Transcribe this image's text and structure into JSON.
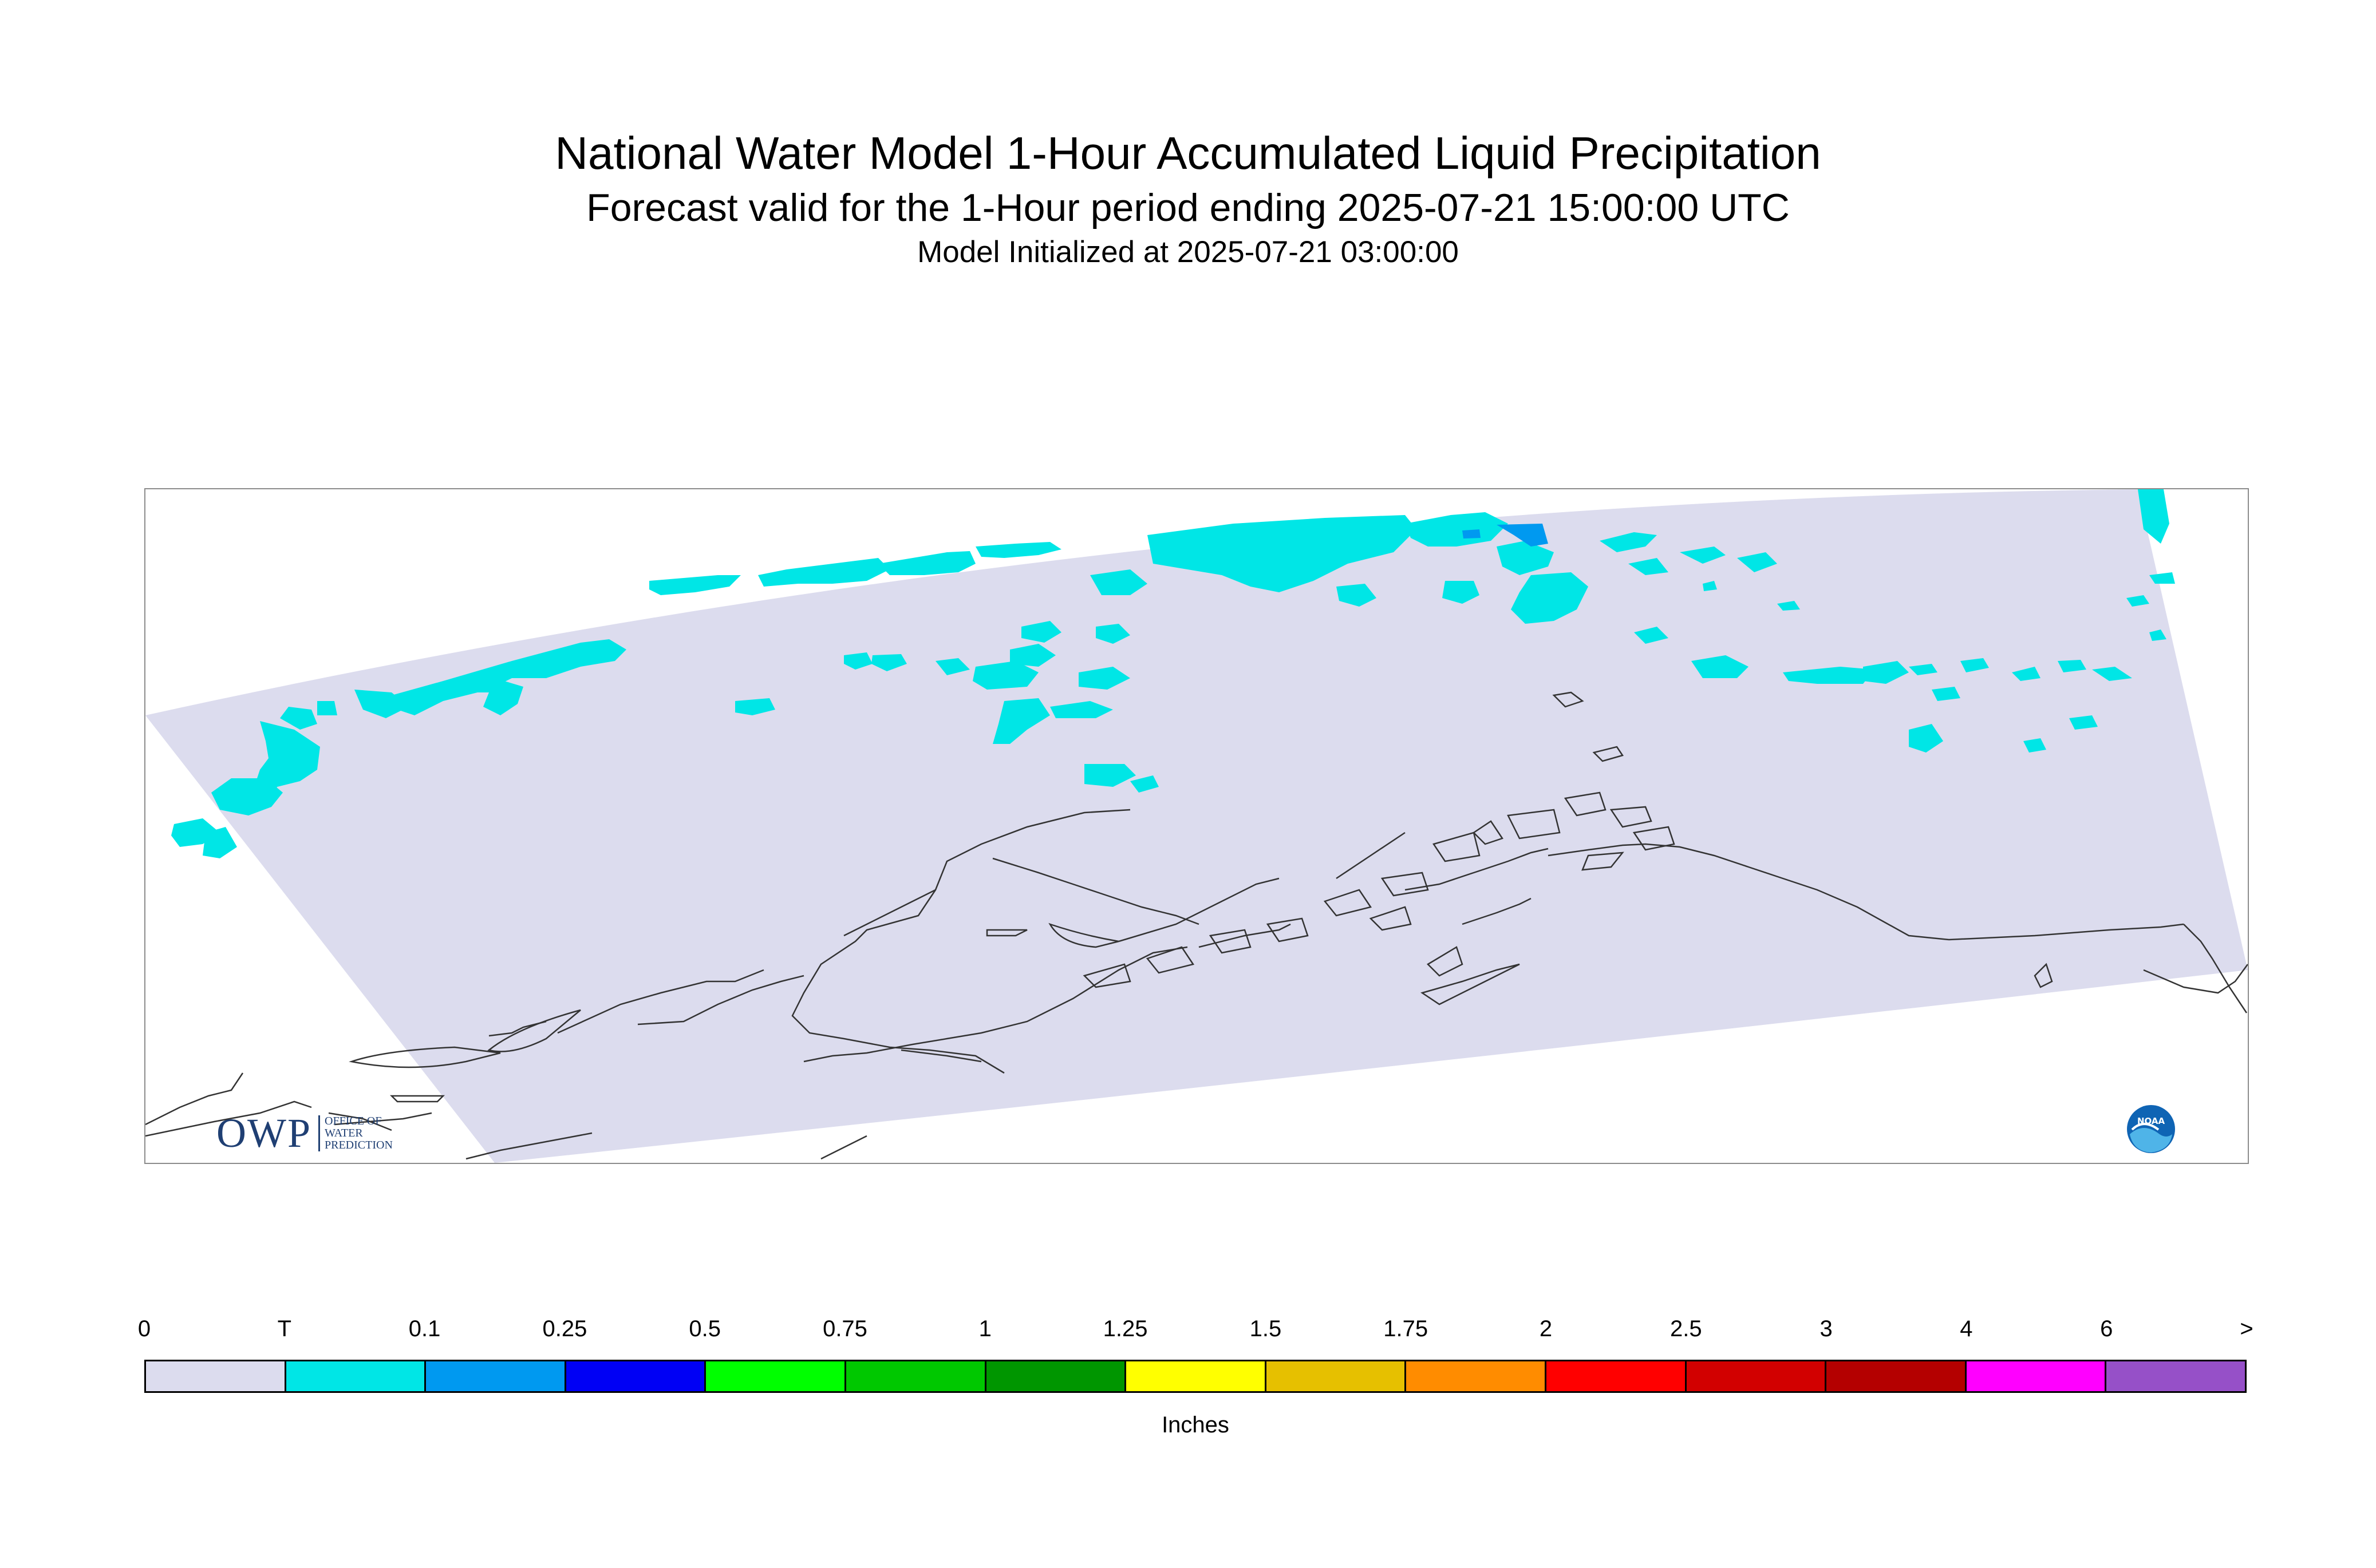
{
  "title": "National Water Model 1-Hour Accumulated Liquid Precipitation",
  "subtitle": "Forecast valid for the 1-Hour period ending 2025-07-21 15:00:00 UTC",
  "init_line": "Model Initialized at 2025-07-21 03:00:00",
  "logo_owp": {
    "letters": "OWP",
    "lines": [
      "OFFICE OF",
      "WATER",
      "PREDICTION"
    ]
  },
  "logo_noaa": {
    "text": "NOAA"
  },
  "legend": {
    "units": "Inches",
    "tick_labels": [
      "0",
      "T",
      "0.1",
      "0.25",
      "0.5",
      "0.75",
      "1",
      "1.25",
      "1.5",
      "1.75",
      "2",
      "2.5",
      "3",
      "4",
      "6",
      ">"
    ],
    "colors": [
      "#dcdcee",
      "#00e6e6",
      "#0099f0",
      "#0000f5",
      "#00ff00",
      "#00c800",
      "#009600",
      "#ffff00",
      "#e6c000",
      "#ff8c00",
      "#ff0000",
      "#d20000",
      "#b40000",
      "#ff00ff",
      "#9650c8"
    ]
  },
  "map": {
    "domain_color": "#dcdcee",
    "trace_color": "#00e6e6",
    "light_color": "#0099f0"
  }
}
